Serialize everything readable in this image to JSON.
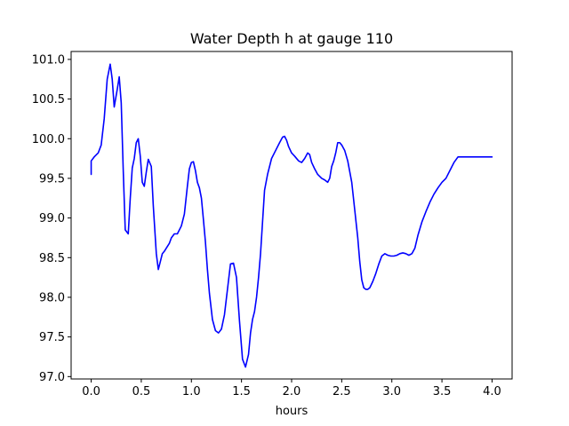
{
  "chart_data": {
    "type": "line",
    "title": "Water Depth h at gauge 110",
    "xlabel": "hours",
    "ylabel": "",
    "xlim": [
      -0.2,
      4.2
    ],
    "ylim": [
      96.97,
      101.1
    ],
    "xticks": [
      0.0,
      0.5,
      1.0,
      1.5,
      2.0,
      2.5,
      3.0,
      3.5,
      4.0
    ],
    "xtick_labels": [
      "0.0",
      "0.5",
      "1.0",
      "1.5",
      "2.0",
      "2.5",
      "3.0",
      "3.5",
      "4.0"
    ],
    "yticks": [
      97.0,
      97.5,
      98.0,
      98.5,
      99.0,
      99.5,
      100.0,
      100.5,
      101.0
    ],
    "ytick_labels": [
      "97.0",
      "97.5",
      "98.0",
      "98.5",
      "99.0",
      "99.5",
      "100.0",
      "100.5",
      "101.0"
    ],
    "grid": false,
    "series": [
      {
        "color": "#0000ff",
        "x": [
          0.0,
          0.0,
          0.03,
          0.07,
          0.1,
          0.13,
          0.16,
          0.19,
          0.21,
          0.23,
          0.26,
          0.28,
          0.3,
          0.32,
          0.34,
          0.37,
          0.39,
          0.41,
          0.43,
          0.45,
          0.47,
          0.49,
          0.51,
          0.53,
          0.55,
          0.57,
          0.6,
          0.62,
          0.65,
          0.67,
          0.69,
          0.71,
          0.73,
          0.75,
          0.78,
          0.8,
          0.83,
          0.86,
          0.9,
          0.93,
          0.96,
          0.98,
          1.0,
          1.02,
          1.04,
          1.06,
          1.08,
          1.1,
          1.12,
          1.14,
          1.16,
          1.18,
          1.21,
          1.24,
          1.27,
          1.3,
          1.33,
          1.36,
          1.39,
          1.42,
          1.45,
          1.48,
          1.51,
          1.54,
          1.57,
          1.59,
          1.61,
          1.63,
          1.65,
          1.67,
          1.69,
          1.71,
          1.73,
          1.76,
          1.8,
          1.84,
          1.88,
          1.91,
          1.93,
          1.95,
          1.97,
          2.0,
          2.03,
          2.07,
          2.1,
          2.13,
          2.16,
          2.18,
          2.2,
          2.23,
          2.26,
          2.3,
          2.33,
          2.36,
          2.38,
          2.4,
          2.42,
          2.44,
          2.46,
          2.48,
          2.5,
          2.53,
          2.56,
          2.6,
          2.63,
          2.66,
          2.68,
          2.7,
          2.72,
          2.74,
          2.76,
          2.78,
          2.81,
          2.84,
          2.87,
          2.9,
          2.93,
          2.96,
          2.99,
          3.02,
          3.05,
          3.08,
          3.11,
          3.14,
          3.17,
          3.2,
          3.23,
          3.26,
          3.3,
          3.34,
          3.38,
          3.42,
          3.46,
          3.5,
          3.54,
          3.58,
          3.62,
          3.66,
          3.7,
          3.75,
          3.8,
          3.85,
          3.9,
          3.94,
          3.97,
          4.0
        ],
        "values": [
          99.55,
          99.72,
          99.77,
          99.82,
          99.92,
          100.25,
          100.75,
          100.94,
          100.75,
          100.4,
          100.62,
          100.78,
          100.45,
          99.6,
          98.85,
          98.8,
          99.25,
          99.63,
          99.75,
          99.95,
          100.0,
          99.78,
          99.45,
          99.4,
          99.58,
          99.74,
          99.65,
          99.15,
          98.55,
          98.35,
          98.45,
          98.55,
          98.58,
          98.62,
          98.68,
          98.75,
          98.8,
          98.8,
          98.9,
          99.05,
          99.4,
          99.62,
          99.7,
          99.71,
          99.6,
          99.45,
          99.38,
          99.25,
          98.98,
          98.7,
          98.35,
          98.05,
          97.72,
          97.58,
          97.55,
          97.6,
          97.78,
          98.1,
          98.42,
          98.43,
          98.25,
          97.7,
          97.22,
          97.12,
          97.28,
          97.55,
          97.72,
          97.82,
          98.0,
          98.25,
          98.55,
          98.95,
          99.35,
          99.55,
          99.75,
          99.85,
          99.95,
          100.02,
          100.03,
          99.98,
          99.9,
          99.82,
          99.78,
          99.72,
          99.7,
          99.75,
          99.82,
          99.8,
          99.7,
          99.62,
          99.55,
          99.5,
          99.48,
          99.45,
          99.5,
          99.65,
          99.72,
          99.82,
          99.95,
          99.95,
          99.92,
          99.85,
          99.72,
          99.45,
          99.1,
          98.75,
          98.45,
          98.22,
          98.12,
          98.1,
          98.1,
          98.12,
          98.2,
          98.3,
          98.42,
          98.52,
          98.55,
          98.53,
          98.52,
          98.52,
          98.53,
          98.55,
          98.56,
          98.55,
          98.53,
          98.55,
          98.62,
          98.78,
          98.95,
          99.08,
          99.2,
          99.3,
          99.38,
          99.45,
          99.5,
          99.6,
          99.7,
          99.77,
          99.77,
          99.77,
          99.77,
          99.77,
          99.77,
          99.77,
          99.77,
          99.77
        ]
      }
    ]
  }
}
